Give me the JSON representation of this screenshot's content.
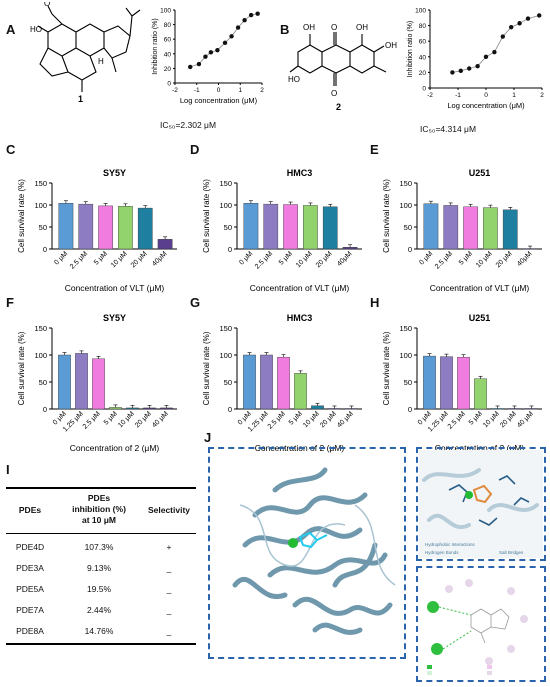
{
  "panels": {
    "A": {
      "label": "A",
      "compound": "1",
      "ic50": "IC₅₀=2.302 μM"
    },
    "B": {
      "label": "B",
      "compound": "2",
      "ic50": "IC₅₀=4.314 μM"
    },
    "C": {
      "label": "C"
    },
    "D": {
      "label": "D"
    },
    "E": {
      "label": "E"
    },
    "F": {
      "label": "F"
    },
    "G": {
      "label": "G"
    },
    "H": {
      "label": "H"
    },
    "I": {
      "label": "I"
    },
    "J": {
      "label": "J"
    }
  },
  "colors": {
    "bars": [
      "#5b9bd5",
      "#8e7cc3",
      "#f07ce0",
      "#92d36e",
      "#1f7fa0",
      "#5b3f8f"
    ],
    "dash": "#2a64ad",
    "protein": "#7fa7bb"
  },
  "chart_data": [
    {
      "panel": "A",
      "type": "scatter",
      "xlabel": "Log concentration (μM)",
      "ylabel": "Inhibition ratio (%)",
      "xlim": [
        -2,
        2
      ],
      "ylim": [
        0,
        100
      ],
      "xticks": [
        "-2",
        "-1",
        "0",
        "1",
        "2"
      ],
      "yticks": [
        "0",
        "20",
        "40",
        "60",
        "80",
        "100"
      ],
      "x": [
        -1.3,
        -0.9,
        -0.6,
        -0.35,
        -0.05,
        0.3,
        0.6,
        0.9,
        1.2,
        1.5,
        1.8
      ],
      "y": [
        22,
        26,
        36,
        42,
        45,
        55,
        64,
        76,
        86,
        93,
        95
      ]
    },
    {
      "panel": "B",
      "type": "scatter",
      "xlabel": "Log concentration (μM)",
      "ylabel": "Inhibition ratio (%)",
      "xlim": [
        -2,
        2
      ],
      "ylim": [
        0,
        100
      ],
      "xticks": [
        "-2",
        "-1",
        "0",
        "1",
        "2"
      ],
      "yticks": [
        "0",
        "20",
        "40",
        "60",
        "80",
        "100"
      ],
      "x": [
        -1.2,
        -0.9,
        -0.6,
        -0.3,
        0.0,
        0.3,
        0.6,
        0.9,
        1.2,
        1.5,
        1.9
      ],
      "y": [
        20,
        22,
        25,
        28,
        40,
        46,
        66,
        78,
        83,
        89,
        93
      ]
    },
    {
      "panel": "C",
      "type": "bar",
      "title": "SY5Y",
      "xlabel": "Concentration of VLT (μM)",
      "ylabel": "Cell survival rate (%)",
      "ylim": [
        0,
        150
      ],
      "yticks": [
        "0",
        "50",
        "100",
        "150"
      ],
      "categories": [
        "0 μM",
        "2.5 μM",
        "5 μM",
        "10 μM",
        "20 μM",
        "40μM"
      ],
      "values": [
        104,
        102,
        98,
        97,
        93,
        22
      ]
    },
    {
      "panel": "D",
      "type": "bar",
      "title": "HMC3",
      "xlabel": "Concentration of VLT (μM)",
      "ylabel": "Cell survival rate (%)",
      "ylim": [
        0,
        150
      ],
      "yticks": [
        "0",
        "50",
        "100",
        "150"
      ],
      "categories": [
        "0 μM",
        "2.5 μM",
        "5 μM",
        "10 μM",
        "20 μM",
        "40μM"
      ],
      "values": [
        104,
        102,
        101,
        99,
        96,
        4
      ]
    },
    {
      "panel": "E",
      "type": "bar",
      "title": "U251",
      "xlabel": "Concentration of VLT (μM)",
      "ylabel": "Cell survival rate (%)",
      "ylim": [
        0,
        150
      ],
      "yticks": [
        "0",
        "50",
        "100",
        "150"
      ],
      "categories": [
        "0 μM",
        "2.5 μM",
        "5 μM",
        "10 μM",
        "20 μM",
        "40μM"
      ],
      "values": [
        103,
        99,
        96,
        94,
        89,
        1
      ]
    },
    {
      "panel": "F",
      "type": "bar",
      "title": "SY5Y",
      "xlabel": "Concentration of 2 (μM)",
      "ylabel": "Cell survival rate (%)",
      "ylim": [
        0,
        150
      ],
      "yticks": [
        "0",
        "50",
        "100",
        "150"
      ],
      "categories": [
        "0 μM",
        "1.25 μM",
        "2.5 μM",
        "5 μM",
        "10 μM",
        "20 μM",
        "40 μM"
      ],
      "values": [
        100,
        103,
        93,
        3,
        2,
        2,
        2
      ]
    },
    {
      "panel": "G",
      "type": "bar",
      "title": "HMC3",
      "xlabel": "Concentration of 2 (μM)",
      "ylabel": "Cell survival rate (%)",
      "ylim": [
        0,
        150
      ],
      "yticks": [
        "0",
        "50",
        "100",
        "150"
      ],
      "categories": [
        "0 μM",
        "1.25 μM",
        "2.5 μM",
        "5 μM",
        "10 μM",
        "20 μM",
        "40 μM"
      ],
      "values": [
        100,
        100,
        96,
        66,
        6,
        1,
        1
      ]
    },
    {
      "panel": "H",
      "type": "bar",
      "title": "U251",
      "xlabel": "Concentration of 2 (μM)",
      "ylabel": "Cell survival rate (%)",
      "ylim": [
        0,
        150
      ],
      "yticks": [
        "0",
        "50",
        "100",
        "150"
      ],
      "categories": [
        "0 μM",
        "1.25 μM",
        "2.5 μM",
        "5 μM",
        "10 μM",
        "20 μM",
        "40 μM"
      ],
      "values": [
        98,
        97,
        96,
        56,
        1,
        1,
        1
      ]
    },
    {
      "panel": "I",
      "type": "table",
      "headers": [
        "PDEs",
        "PDEs inhibition (%) at 10 μM",
        "Selectivity"
      ],
      "rows": [
        [
          "PDE4D",
          "107.3%",
          "+"
        ],
        [
          "PDE3A",
          "9.13%",
          "_"
        ],
        [
          "PDE5A",
          "19.5%",
          "_"
        ],
        [
          "PDE7A",
          "2.44%",
          "_"
        ],
        [
          "PDE8A",
          "14.76%",
          "_"
        ]
      ]
    }
  ],
  "table_I": {
    "h_pdes": "PDEs",
    "h_inhib1": "PDEs",
    "h_inhib2": "inhibition (%)",
    "h_inhib3": "at 10 μM",
    "h_sel": "Selectivity"
  },
  "panel_J": {
    "legend_hydrophobic": "Hydrophobic Interactions",
    "legend_hbonds": "Hydrogen Bonds",
    "legend_salt": "Salt Bridges"
  }
}
